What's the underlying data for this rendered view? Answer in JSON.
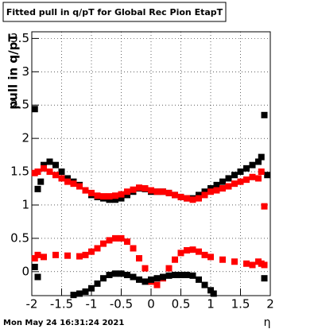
{
  "chart_data": {
    "type": "scatter",
    "title": "Fitted pull in q/pT for Global Rec Pion EtapT",
    "y_label": "pull in q/pT",
    "x_label": "η",
    "timestamp": "Mon May 24 16:31:24 2021",
    "xlim": [
      -2,
      2
    ],
    "ylim": [
      -0.36,
      3.6
    ],
    "xticks": [
      -2,
      -1.5,
      -1,
      -0.5,
      0,
      0.5,
      1,
      1.5,
      2
    ],
    "yticks": [
      0,
      0.5,
      1,
      1.5,
      2,
      2.5,
      3,
      3.5
    ],
    "grid": true,
    "series": [
      {
        "color": "#000000",
        "x": [
          -1.95,
          -1.9,
          -1.85,
          -1.8,
          -1.7,
          -1.6,
          -1.5,
          -1.4,
          -1.3,
          -1.2,
          -1.1,
          -1.0,
          -0.9,
          -0.8,
          -0.7,
          -0.6,
          -0.5,
          -0.4,
          -0.3,
          -0.2,
          -0.1,
          0,
          0.1,
          0.2,
          0.3,
          0.4,
          0.5,
          0.6,
          0.7,
          0.8,
          0.9,
          1.0,
          1.1,
          1.2,
          1.3,
          1.4,
          1.5,
          1.6,
          1.7,
          1.8,
          1.85,
          1.9,
          1.95
        ],
        "values": [
          2.44,
          1.24,
          1.35,
          1.6,
          1.65,
          1.6,
          1.5,
          1.4,
          1.35,
          1.3,
          1.22,
          1.15,
          1.12,
          1.1,
          1.08,
          1.08,
          1.1,
          1.15,
          1.2,
          1.25,
          1.24,
          1.2,
          1.2,
          1.2,
          1.18,
          1.15,
          1.12,
          1.1,
          1.1,
          1.15,
          1.2,
          1.25,
          1.3,
          1.35,
          1.4,
          1.45,
          1.5,
          1.55,
          1.6,
          1.65,
          1.72,
          2.35,
          1.45
        ]
      },
      {
        "color": "#ff0000",
        "x": [
          -1.95,
          -1.9,
          -1.8,
          -1.7,
          -1.6,
          -1.5,
          -1.4,
          -1.3,
          -1.2,
          -1.1,
          -1.0,
          -0.9,
          -0.8,
          -0.7,
          -0.6,
          -0.5,
          -0.4,
          -0.3,
          -0.2,
          -0.1,
          0,
          0.1,
          0.2,
          0.3,
          0.4,
          0.5,
          0.6,
          0.7,
          0.8,
          0.9,
          1.0,
          1.1,
          1.2,
          1.3,
          1.4,
          1.5,
          1.6,
          1.7,
          1.8,
          1.85,
          1.9
        ],
        "values": [
          1.48,
          1.5,
          1.55,
          1.5,
          1.45,
          1.4,
          1.35,
          1.32,
          1.28,
          1.22,
          1.18,
          1.14,
          1.13,
          1.13,
          1.14,
          1.16,
          1.2,
          1.23,
          1.26,
          1.25,
          1.22,
          1.2,
          1.2,
          1.18,
          1.15,
          1.12,
          1.1,
          1.08,
          1.1,
          1.15,
          1.2,
          1.22,
          1.25,
          1.28,
          1.32,
          1.35,
          1.38,
          1.42,
          1.4,
          1.5,
          0.98
        ]
      },
      {
        "color": "#ff0000",
        "x": [
          -1.95,
          -1.9,
          -1.8,
          -1.6,
          -1.4,
          -1.2,
          -1.1,
          -1.0,
          -0.9,
          -0.8,
          -0.7,
          -0.6,
          -0.5,
          -0.4,
          -0.3,
          -0.2,
          -0.1,
          0,
          0.1,
          0.2,
          0.3,
          0.4,
          0.5,
          0.6,
          0.7,
          0.8,
          0.9,
          1.0,
          1.2,
          1.4,
          1.6,
          1.7,
          1.8,
          1.85,
          1.9
        ],
        "values": [
          0.2,
          0.25,
          0.22,
          0.25,
          0.24,
          0.23,
          0.25,
          0.3,
          0.35,
          0.42,
          0.47,
          0.5,
          0.5,
          0.45,
          0.35,
          0.2,
          0.05,
          -0.15,
          -0.2,
          -0.1,
          0.05,
          0.18,
          0.28,
          0.32,
          0.33,
          0.3,
          0.25,
          0.22,
          0.18,
          0.15,
          0.12,
          0.1,
          0.15,
          0.12,
          0.1
        ]
      },
      {
        "color": "#000000",
        "x": [
          -1.95,
          -1.9,
          -1.3,
          -1.2,
          -1.1,
          -1.0,
          -0.9,
          -0.8,
          -0.7,
          -0.6,
          -0.5,
          -0.4,
          -0.3,
          -0.2,
          -0.1,
          0,
          0.1,
          0.2,
          0.3,
          0.4,
          0.5,
          0.6,
          0.7,
          0.8,
          0.9,
          1.0,
          1.05,
          1.9
        ],
        "values": [
          0.07,
          -0.08,
          -0.35,
          -0.33,
          -0.3,
          -0.25,
          -0.18,
          -0.1,
          -0.05,
          -0.03,
          -0.03,
          -0.05,
          -0.08,
          -0.12,
          -0.15,
          -0.12,
          -0.1,
          -0.08,
          -0.06,
          -0.05,
          -0.05,
          -0.05,
          -0.06,
          -0.12,
          -0.2,
          -0.28,
          -0.33,
          -0.1
        ]
      }
    ]
  }
}
